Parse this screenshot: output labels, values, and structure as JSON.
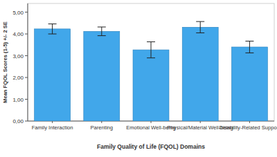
{
  "chart_data": {
    "type": "bar",
    "x_label": "Family Quality of Life (FQOL) Domains",
    "y_label": "Mean FQOL Scores (1-5) +/- 2 SE",
    "categories": [
      "Family Interaction",
      "Parenting",
      "Emotional Well-being",
      "Physical/Material Well-being",
      "Disability-Related Support"
    ],
    "values": [
      4.23,
      4.12,
      3.27,
      4.31,
      3.4
    ],
    "errors": [
      0.23,
      0.2,
      0.37,
      0.26,
      0.27
    ],
    "color": "#41a7ea",
    "ylim": [
      0,
      5.4
    ],
    "yticks": [
      {
        "value": 0,
        "label": "0,00"
      },
      {
        "value": 1,
        "label": "1,00"
      },
      {
        "value": 2,
        "label": "2,00"
      },
      {
        "value": 3,
        "label": "3,00"
      },
      {
        "value": 4,
        "label": "4,00"
      },
      {
        "value": 5,
        "label": "5,00"
      }
    ],
    "grid": false
  }
}
